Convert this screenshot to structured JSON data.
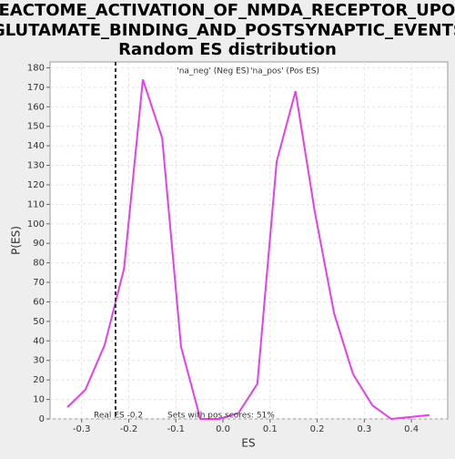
{
  "chart_data": {
    "type": "line",
    "title": [
      "REACTOME_ACTIVATION_OF_NMDA_RECEPTOR_UPON",
      "_GLUTAMATE_BINDING_AND_POSTSYNAPTIC_EVENTS:",
      "Random ES distribution"
    ],
    "xlabel": "ES",
    "ylabel": "P(ES)",
    "x": [
      -0.33,
      -0.292,
      -0.251,
      -0.21,
      -0.17,
      -0.129,
      -0.089,
      -0.048,
      -0.008,
      0.033,
      0.073,
      0.114,
      0.154,
      0.195,
      0.236,
      0.276,
      0.317,
      0.357,
      0.398,
      0.438
    ],
    "series": [
      {
        "name": "P(ES)",
        "color": "#e83cf0",
        "values": [
          6,
          15,
          38,
          77,
          174,
          144,
          37,
          0,
          0,
          3,
          18,
          132,
          168,
          106,
          54,
          23,
          7,
          0,
          1,
          2
        ]
      }
    ],
    "xlim": [
      -0.367,
      0.477
    ],
    "ylim": [
      0,
      183
    ],
    "xticks": [
      -0.3,
      -0.2,
      -0.1,
      {
        "value": 0,
        "label": "0.0"
      },
      0.1,
      0.2,
      0.3,
      0.4
    ],
    "yticks": [
      0,
      10,
      20,
      30,
      40,
      50,
      60,
      70,
      80,
      90,
      100,
      110,
      120,
      130,
      140,
      150,
      160,
      170,
      180
    ],
    "grid": true,
    "legend": [
      {
        "name": "'na_neg' (Neg ES)",
        "color": "#3c3cf0"
      },
      {
        "name": "'na_pos' (Pos ES)",
        "color": "#f03c3c"
      }
    ],
    "real_es": -0.228,
    "real_es_label": "Real ES -0.2",
    "pos_scores_label": "Sets with pos scores: 51%"
  }
}
